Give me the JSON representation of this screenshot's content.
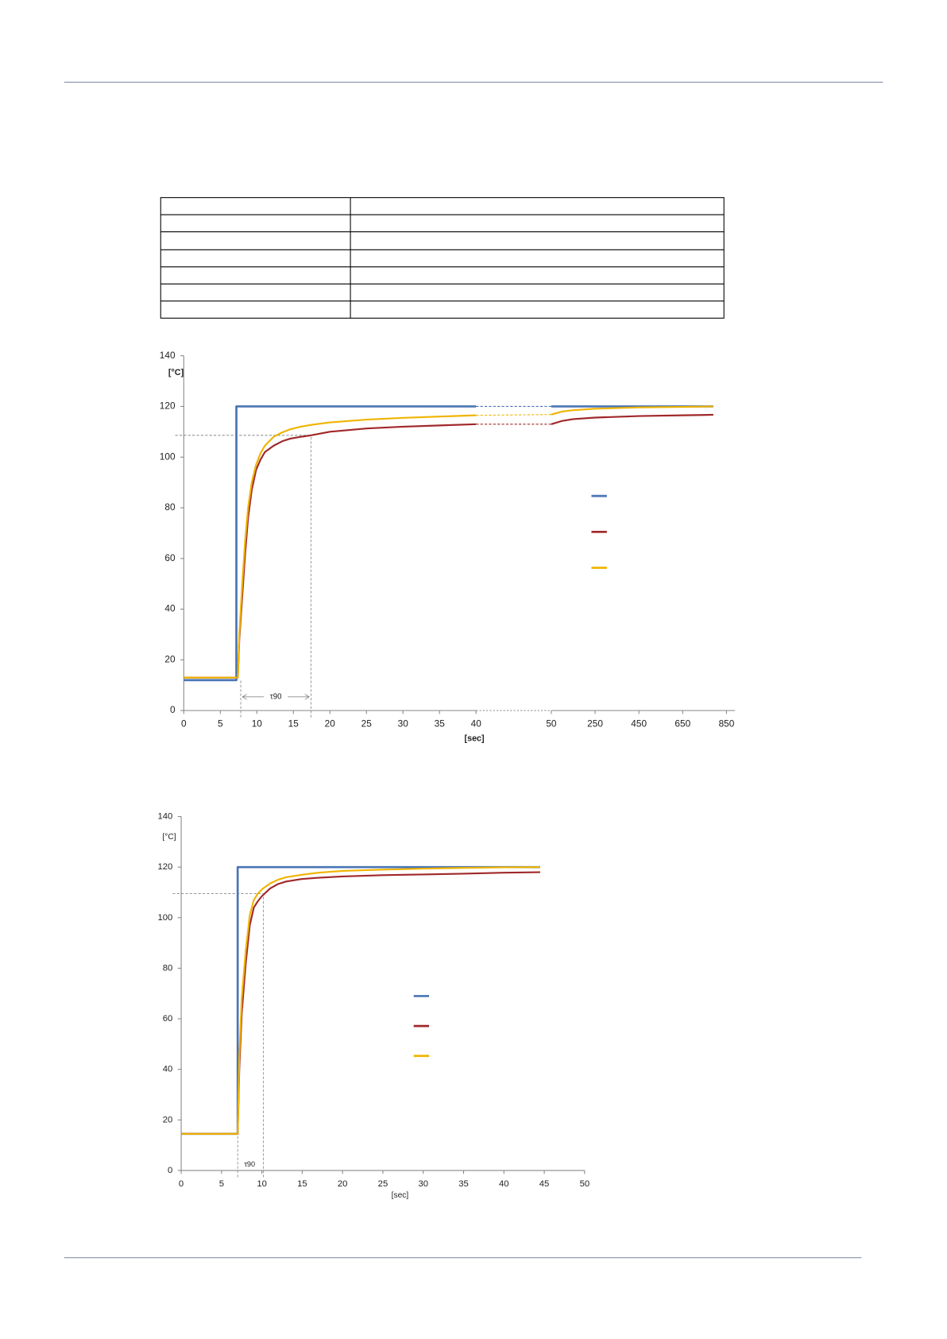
{
  "chart_data": [
    {
      "type": "line",
      "y_label": "[°C]",
      "x_label": "[sec]",
      "annotation": "τ90",
      "xlim": [
        0,
        40
      ],
      "xticks": [
        0,
        5,
        10,
        15,
        20,
        25,
        30,
        35,
        40
      ],
      "x2lim": [
        50,
        850
      ],
      "x2ticks": [
        50,
        250,
        450,
        650,
        850
      ],
      "ylim": [
        0,
        140
      ],
      "yticks": [
        0,
        20,
        40,
        60,
        80,
        100,
        120,
        140
      ],
      "t90_marks": {
        "x": [
          7.8,
          17.4
        ],
        "y": 108.6
      },
      "series": [
        {
          "color": "#4a75b5",
          "x": [
            0,
            7.2,
            7.2,
            40
          ],
          "values": [
            12,
            12,
            120,
            120
          ],
          "x2": [
            50,
            790
          ],
          "values2": [
            120,
            120
          ]
        },
        {
          "color": "#a0282a",
          "x": [
            0,
            7.4,
            7.6,
            8,
            8.4,
            8.8,
            9.3,
            9.9,
            10.5,
            11.1,
            12.3,
            13.5,
            14.6,
            16,
            17.4,
            20,
            25,
            30,
            35,
            40
          ],
          "values": [
            13,
            13,
            28,
            45,
            62,
            76,
            87,
            95,
            99,
            102,
            104.5,
            106.3,
            107.3,
            108,
            108.6,
            110,
            111.3,
            112,
            112.5,
            113
          ],
          "x2": [
            50,
            100,
            150,
            250,
            450,
            650,
            790
          ],
          "values2": [
            113,
            114.3,
            115,
            115.6,
            116.2,
            116.5,
            116.7
          ]
        },
        {
          "color": "#f0b400",
          "x": [
            0,
            7.4,
            7.6,
            8,
            8.4,
            8.8,
            9.3,
            9.9,
            10.5,
            11.1,
            12.3,
            13.5,
            14.6,
            16,
            17.4,
            20,
            25,
            30,
            35,
            40
          ],
          "values": [
            13,
            13,
            30,
            50,
            67,
            80,
            90,
            97,
            101.5,
            104.5,
            108,
            109.8,
            111,
            112,
            112.7,
            113.7,
            114.8,
            115.5,
            116,
            116.5
          ],
          "x2": [
            50,
            100,
            150,
            250,
            450,
            650,
            790
          ],
          "values2": [
            116.8,
            118,
            118.5,
            119.1,
            119.6,
            119.8,
            120
          ]
        }
      ]
    },
    {
      "type": "line",
      "y_label": "[°C]",
      "x_label": "[sec]",
      "annotation": "τ90",
      "xlim": [
        0,
        50
      ],
      "xticks": [
        0,
        5,
        10,
        15,
        20,
        25,
        30,
        35,
        40,
        45,
        50
      ],
      "ylim": [
        0,
        140
      ],
      "yticks": [
        0,
        20,
        40,
        60,
        80,
        100,
        120,
        140
      ],
      "t90_marks": {
        "x": [
          7,
          10.2
        ],
        "y": 109.5
      },
      "series": [
        {
          "color": "#4a75b5",
          "x": [
            0,
            7,
            7,
            44.5
          ],
          "values": [
            14.5,
            14.5,
            120,
            120
          ]
        },
        {
          "color": "#a0282a",
          "x": [
            0,
            7,
            7.2,
            7.5,
            8,
            8.5,
            9,
            9.5,
            10,
            11,
            12,
            13,
            15,
            17,
            20,
            25,
            30,
            35,
            40,
            44.5
          ],
          "values": [
            14.5,
            14.5,
            40,
            62,
            82,
            97,
            104,
            106.5,
            108.5,
            111.5,
            113.3,
            114.3,
            115.3,
            115.8,
            116.3,
            116.8,
            117.1,
            117.4,
            117.8,
            118
          ]
        },
        {
          "color": "#f0b400",
          "x": [
            0,
            7,
            7.2,
            7.5,
            8,
            8.5,
            9,
            9.5,
            10,
            11,
            12,
            13,
            15,
            17,
            20,
            25,
            30,
            35,
            40,
            44.5
          ],
          "values": [
            14.5,
            14.5,
            45,
            68,
            87,
            101,
            107,
            109.5,
            111.2,
            113.5,
            115,
            116,
            117,
            117.8,
            118.5,
            119,
            119.4,
            119.7,
            119.9,
            120
          ]
        }
      ]
    }
  ]
}
